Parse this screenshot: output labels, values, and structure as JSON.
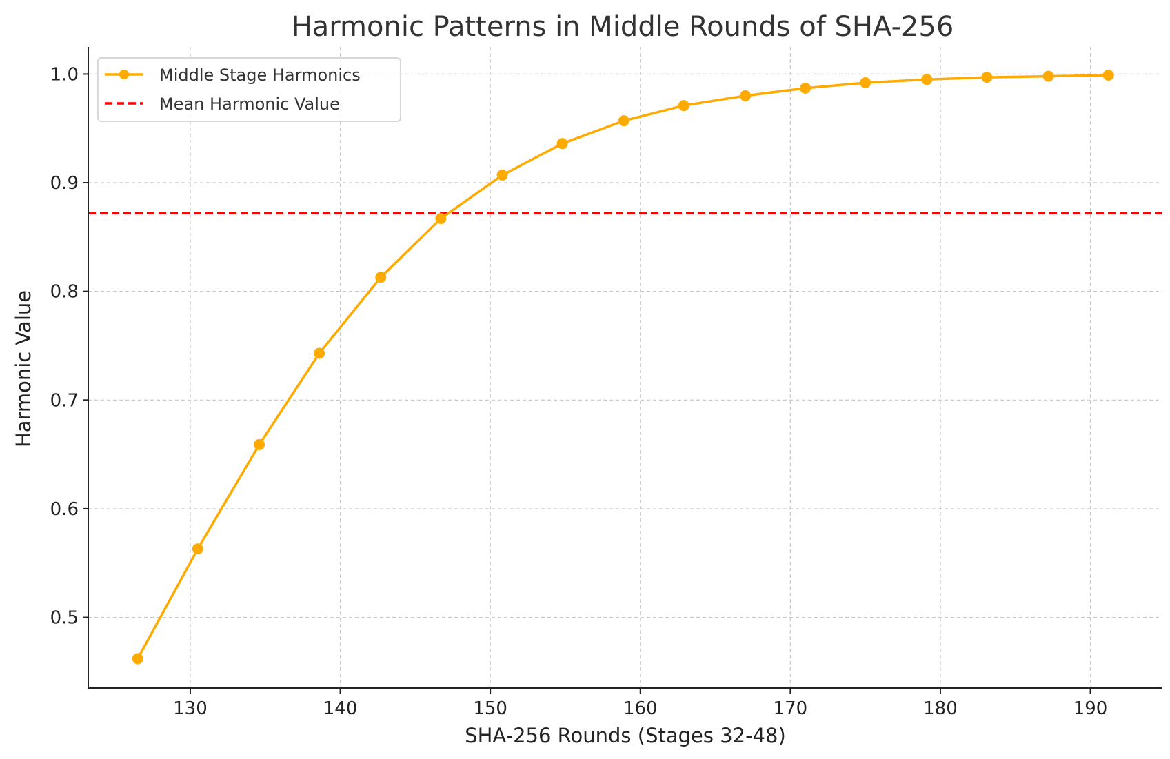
{
  "chart_data": {
    "type": "line",
    "title": "Harmonic Patterns in Middle Rounds of SHA-256",
    "xlabel": "SHA-256 Rounds (Stages 32-48)",
    "ylabel": "Harmonic Value",
    "xlim": [
      123.2,
      194.8
    ],
    "ylim": [
      0.435,
      1.025
    ],
    "xticks": [
      130,
      140,
      150,
      160,
      170,
      180,
      190
    ],
    "yticks": [
      0.5,
      0.6,
      0.7,
      0.8,
      0.9,
      1.0
    ],
    "xtick_labels": [
      "130",
      "140",
      "150",
      "160",
      "170",
      "180",
      "190"
    ],
    "ytick_labels": [
      "0.5",
      "0.6",
      "0.7",
      "0.8",
      "0.9",
      "1.0"
    ],
    "grid": true,
    "legend_position": "top-left",
    "series": [
      {
        "name": "Middle Stage Harmonics",
        "color": "#FFAA00",
        "marker": "circle",
        "x": [
          126.5,
          130.5,
          134.6,
          138.6,
          142.7,
          146.7,
          150.8,
          154.8,
          158.9,
          162.9,
          167.0,
          171.0,
          175.0,
          179.1,
          183.1,
          187.2,
          191.2
        ],
        "y": [
          0.462,
          0.563,
          0.659,
          0.743,
          0.813,
          0.867,
          0.907,
          0.936,
          0.957,
          0.971,
          0.98,
          0.987,
          0.992,
          0.995,
          0.997,
          0.998,
          0.999
        ]
      },
      {
        "name": "Mean Harmonic Value",
        "color": "#FF0000",
        "style": "dashed",
        "type": "hline",
        "y": 0.872
      }
    ]
  }
}
